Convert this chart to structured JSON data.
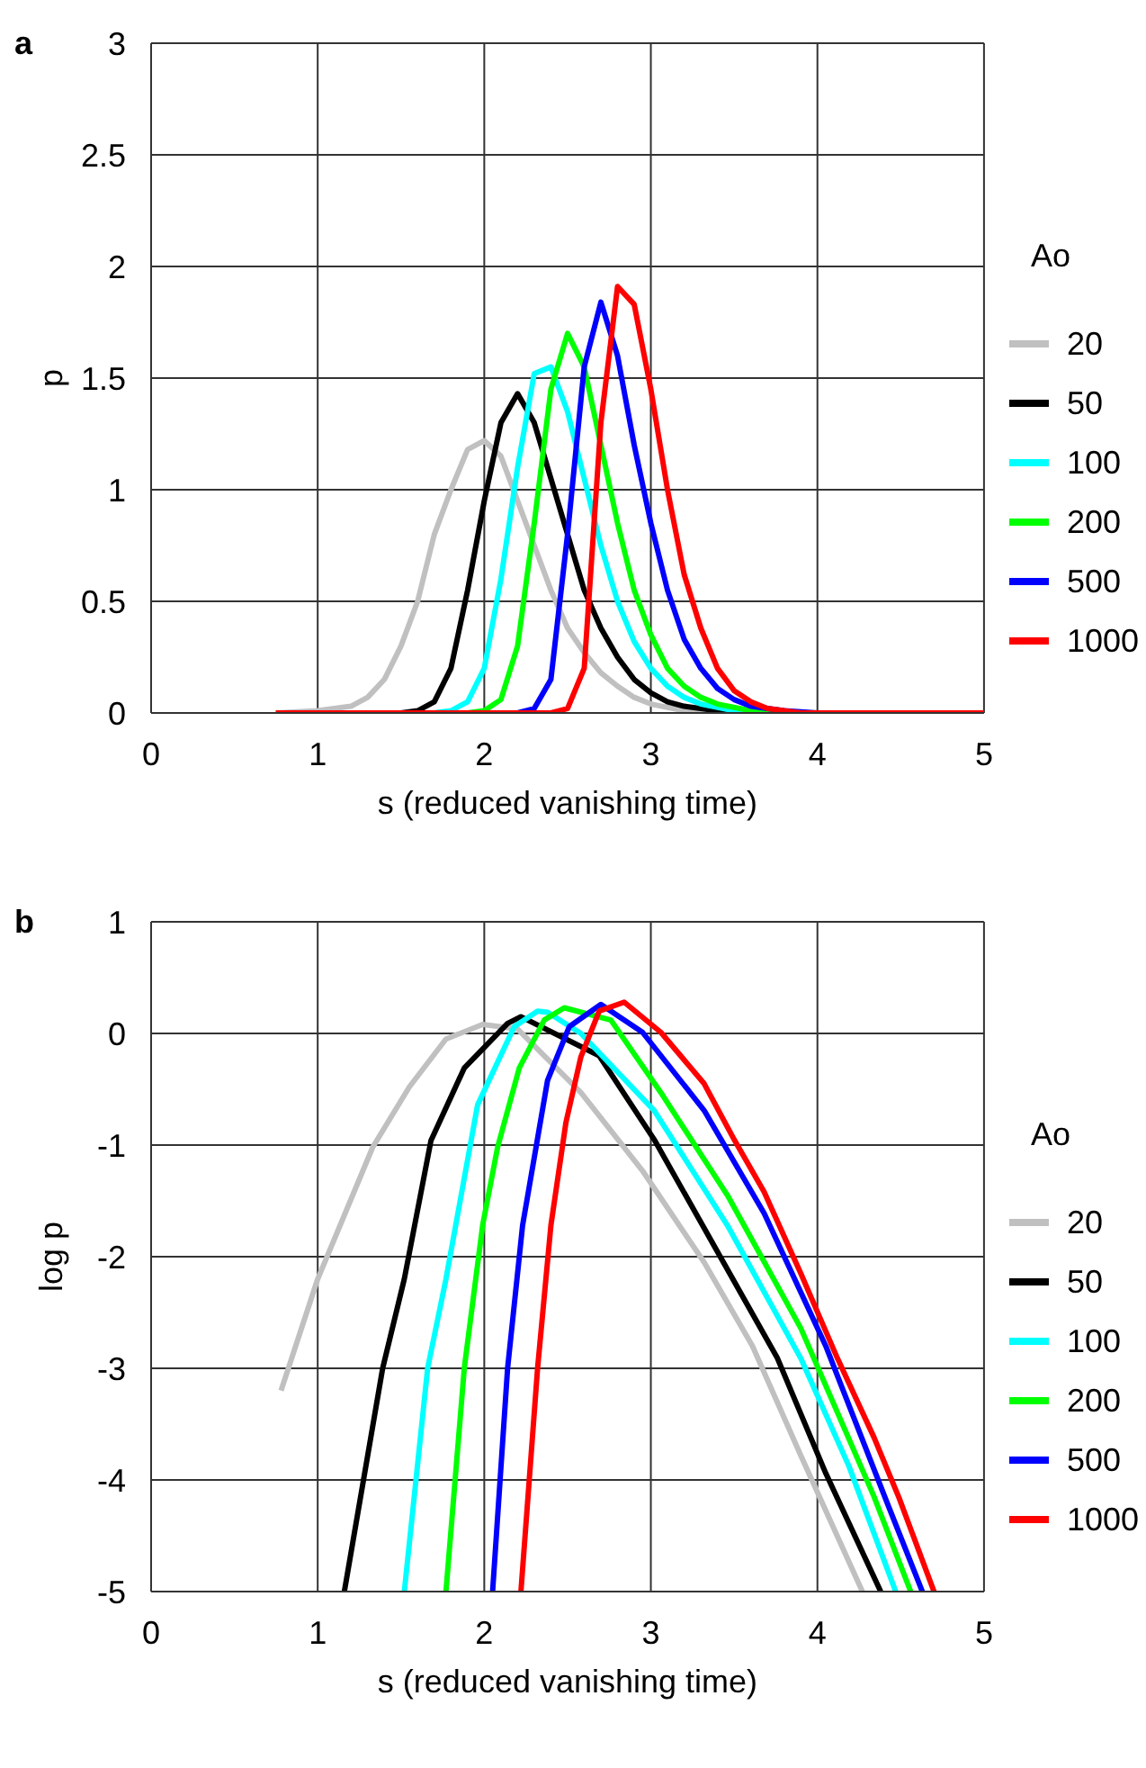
{
  "chart_data": [
    {
      "type": "line",
      "title": "a",
      "xlabel": "s (reduced vanishing time)",
      "ylabel": "p",
      "legend_title": "Ao",
      "xlim": [
        0,
        5
      ],
      "ylim": [
        0,
        3
      ],
      "xticks": [
        0,
        1,
        2,
        3,
        4,
        5
      ],
      "yticks": [
        0,
        0.5,
        1,
        1.5,
        2,
        2.5,
        3
      ],
      "grid": true,
      "legend": "right",
      "series": [
        {
          "name": "20",
          "color": "#c0c0c0",
          "x": [
            0.75,
            1.0,
            1.2,
            1.3,
            1.4,
            1.5,
            1.6,
            1.7,
            1.8,
            1.9,
            2.0,
            2.1,
            2.2,
            2.3,
            2.4,
            2.5,
            2.6,
            2.7,
            2.8,
            2.9,
            3.0,
            3.2,
            3.5,
            5
          ],
          "values": [
            0,
            0.01,
            0.03,
            0.07,
            0.15,
            0.3,
            0.5,
            0.8,
            1.0,
            1.18,
            1.22,
            1.15,
            0.95,
            0.75,
            0.55,
            0.38,
            0.27,
            0.18,
            0.12,
            0.07,
            0.04,
            0.01,
            0,
            0
          ]
        },
        {
          "name": "50",
          "color": "#000000",
          "x": [
            0.75,
            1.5,
            1.6,
            1.7,
            1.8,
            1.9,
            2.0,
            2.1,
            2.2,
            2.3,
            2.4,
            2.5,
            2.6,
            2.7,
            2.8,
            2.9,
            3.0,
            3.1,
            3.2,
            3.4,
            3.7,
            5
          ],
          "values": [
            0,
            0,
            0.01,
            0.05,
            0.2,
            0.55,
            0.95,
            1.3,
            1.43,
            1.3,
            1.05,
            0.8,
            0.55,
            0.38,
            0.25,
            0.15,
            0.09,
            0.05,
            0.03,
            0.01,
            0,
            0
          ]
        },
        {
          "name": "100",
          "color": "#00ffff",
          "x": [
            0.75,
            1.7,
            1.8,
            1.9,
            2.0,
            2.1,
            2.2,
            2.3,
            2.4,
            2.5,
            2.6,
            2.7,
            2.8,
            2.9,
            3.0,
            3.1,
            3.2,
            3.3,
            3.5,
            3.8,
            5
          ],
          "values": [
            0,
            0,
            0.01,
            0.05,
            0.2,
            0.6,
            1.1,
            1.52,
            1.55,
            1.35,
            1.05,
            0.75,
            0.5,
            0.32,
            0.2,
            0.12,
            0.07,
            0.04,
            0.01,
            0,
            0
          ]
        },
        {
          "name": "200",
          "color": "#00ff00",
          "x": [
            0.75,
            1.9,
            2.0,
            2.1,
            2.2,
            2.3,
            2.4,
            2.5,
            2.6,
            2.7,
            2.8,
            2.9,
            3.0,
            3.1,
            3.2,
            3.3,
            3.4,
            3.6,
            3.9,
            5
          ],
          "values": [
            0,
            0,
            0.01,
            0.06,
            0.3,
            0.85,
            1.45,
            1.7,
            1.55,
            1.2,
            0.85,
            0.55,
            0.35,
            0.2,
            0.12,
            0.07,
            0.04,
            0.01,
            0,
            0
          ]
        },
        {
          "name": "500",
          "color": "#0000ff",
          "x": [
            0.75,
            2.2,
            2.3,
            2.4,
            2.5,
            2.6,
            2.7,
            2.8,
            2.9,
            3.0,
            3.1,
            3.2,
            3.3,
            3.4,
            3.5,
            3.6,
            3.8,
            4.0,
            5
          ],
          "values": [
            0,
            0,
            0.02,
            0.15,
            0.8,
            1.55,
            1.84,
            1.6,
            1.2,
            0.85,
            0.55,
            0.33,
            0.2,
            0.11,
            0.06,
            0.03,
            0.01,
            0,
            0
          ]
        },
        {
          "name": "1000",
          "color": "#ff0000",
          "x": [
            0.75,
            2.4,
            2.5,
            2.6,
            2.7,
            2.8,
            2.9,
            3.0,
            3.1,
            3.2,
            3.3,
            3.4,
            3.5,
            3.6,
            3.7,
            3.9,
            5
          ],
          "values": [
            0,
            0,
            0.02,
            0.2,
            1.3,
            1.91,
            1.83,
            1.45,
            1.0,
            0.62,
            0.38,
            0.2,
            0.1,
            0.05,
            0.02,
            0,
            0
          ]
        }
      ]
    },
    {
      "type": "line",
      "title": "b",
      "xlabel": "s (reduced vanishing time)",
      "ylabel": "log p",
      "legend_title": "Ao",
      "xlim": [
        0,
        5
      ],
      "ylim": [
        -5,
        1
      ],
      "xticks": [
        0,
        1,
        2,
        3,
        4,
        5
      ],
      "yticks": [
        -5,
        -4,
        -3,
        -2,
        -1,
        0,
        1
      ],
      "grid": true,
      "legend": "right",
      "series": [
        {
          "name": "20",
          "color": "#c0c0c0",
          "x": [
            0.78,
            1.0,
            1.33,
            1.55,
            1.77,
            1.99,
            2.2,
            2.58,
            2.95,
            3.32,
            3.61,
            3.9,
            4.27
          ],
          "values": [
            -3.2,
            -2.2,
            -1.02,
            -0.48,
            -0.05,
            0.08,
            0.04,
            -0.53,
            -1.23,
            -2.05,
            -2.8,
            -3.78,
            -5
          ]
        },
        {
          "name": "50",
          "color": "#000000",
          "x": [
            1.16,
            1.39,
            1.52,
            1.68,
            1.88,
            2.14,
            2.22,
            2.69,
            3.02,
            3.39,
            3.76,
            4.05,
            4.38
          ],
          "values": [
            -5,
            -3.0,
            -2.2,
            -0.96,
            -0.31,
            0.09,
            0.15,
            -0.2,
            -0.95,
            -1.93,
            -2.91,
            -3.94,
            -5
          ]
        },
        {
          "name": "100",
          "color": "#00ffff",
          "x": [
            1.52,
            1.66,
            1.77,
            1.96,
            2.18,
            2.32,
            2.38,
            2.58,
            3.02,
            3.46,
            3.9,
            4.19,
            4.47
          ],
          "values": [
            -5,
            -3.0,
            -2.2,
            -0.64,
            0.06,
            0.2,
            0.19,
            0.0,
            -0.69,
            -1.72,
            -2.91,
            -3.88,
            -5
          ]
        },
        {
          "name": "200",
          "color": "#00ff00",
          "x": [
            1.77,
            1.88,
            1.99,
            2.08,
            2.21,
            2.36,
            2.48,
            2.76,
            3.06,
            3.46,
            3.9,
            4.34,
            4.56
          ],
          "values": [
            -5,
            -3.0,
            -1.72,
            -1.02,
            -0.31,
            0.12,
            0.23,
            0.12,
            -0.53,
            -1.45,
            -2.64,
            -4.15,
            -5
          ]
        },
        {
          "name": "500",
          "color": "#0000ff",
          "x": [
            2.05,
            2.14,
            2.23,
            2.38,
            2.51,
            2.7,
            2.95,
            3.32,
            3.68,
            4.05,
            4.42,
            4.63
          ],
          "values": [
            -5,
            -3.0,
            -1.72,
            -0.42,
            0.06,
            0.26,
            0.01,
            -0.69,
            -1.61,
            -2.8,
            -4.21,
            -5
          ]
        },
        {
          "name": "1000",
          "color": "#ff0000",
          "x": [
            2.22,
            2.32,
            2.4,
            2.49,
            2.58,
            2.69,
            2.84,
            3.06,
            3.32,
            3.5,
            3.68,
            3.9,
            4.12,
            4.34,
            4.49,
            4.7
          ],
          "values": [
            -5,
            -3.0,
            -1.72,
            -0.8,
            -0.21,
            0.2,
            0.28,
            0.01,
            -0.45,
            -0.95,
            -1.42,
            -2.15,
            -2.91,
            -3.62,
            -4.16,
            -5
          ]
        }
      ]
    }
  ]
}
